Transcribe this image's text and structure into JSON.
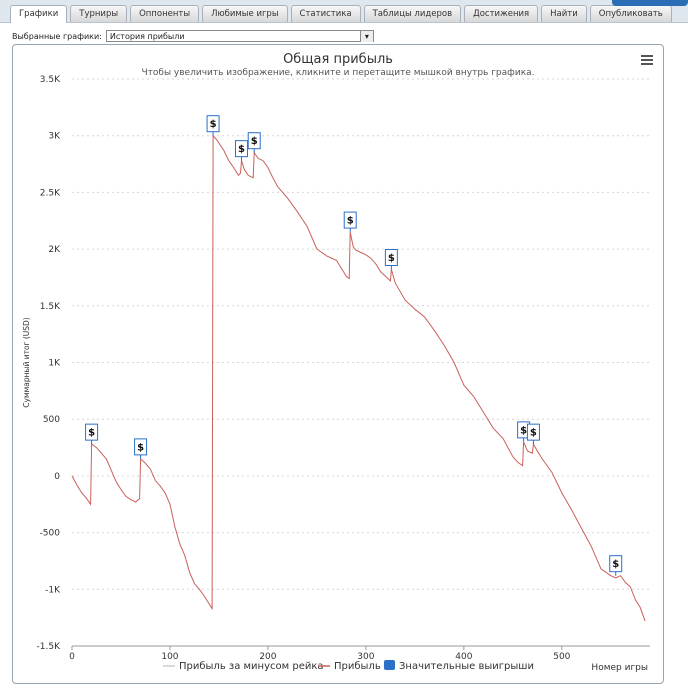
{
  "tabs": [
    {
      "label": "Графики",
      "active": true
    },
    {
      "label": "Турниры",
      "active": false
    },
    {
      "label": "Оппоненты",
      "active": false
    },
    {
      "label": "Любимые игры",
      "active": false
    },
    {
      "label": "Статистика",
      "active": false
    },
    {
      "label": "Таблицы лидеров",
      "active": false
    },
    {
      "label": "Достижения",
      "active": false
    },
    {
      "label": "Найти",
      "active": false
    },
    {
      "label": "Опубликовать",
      "active": false
    }
  ],
  "chooser": {
    "label": "Выбранные графики:",
    "value": "История прибыли",
    "arrow": "▾"
  },
  "chart_data": {
    "type": "line",
    "title": "Общая прибыль",
    "subtitle": "Чтобы увеличить изображение, кликните и перетащите мышкой внутрь графика.",
    "ylabel": "Суммарный итог (USD)",
    "xlabel": "Номер игры",
    "ylim": [
      -1500,
      3500
    ],
    "xlim": [
      0,
      590
    ],
    "y_ticks": [
      {
        "v": 3500,
        "label": "3.5K"
      },
      {
        "v": 3000,
        "label": "3K"
      },
      {
        "v": 2500,
        "label": "2.5K"
      },
      {
        "v": 2000,
        "label": "2K"
      },
      {
        "v": 1500,
        "label": "1.5K"
      },
      {
        "v": 1000,
        "label": "1K"
      },
      {
        "v": 500,
        "label": "500"
      },
      {
        "v": 0,
        "label": "0"
      },
      {
        "v": -500,
        "label": "-500"
      },
      {
        "v": -1000,
        "label": "-1K"
      },
      {
        "v": -1500,
        "label": "-1.5K"
      }
    ],
    "x_ticks": [
      {
        "v": 0,
        "label": "0"
      },
      {
        "v": 100,
        "label": "100"
      },
      {
        "v": 200,
        "label": "200"
      },
      {
        "v": 300,
        "label": "300"
      },
      {
        "v": 400,
        "label": "400"
      },
      {
        "v": 500,
        "label": "500"
      }
    ],
    "grid": true,
    "legend_position": "bottom",
    "series": [
      {
        "name": "Прибыль за минусом рейка",
        "color": "#cccccc",
        "hidden": true,
        "x": [],
        "y": []
      },
      {
        "name": "Прибыль",
        "color": "#c9605a",
        "x": [
          0,
          5,
          10,
          15,
          19,
          20,
          25,
          30,
          35,
          40,
          45,
          50,
          55,
          60,
          65,
          69,
          70,
          75,
          80,
          85,
          90,
          95,
          100,
          105,
          110,
          115,
          120,
          125,
          130,
          135,
          143,
          144,
          148,
          155,
          160,
          165,
          170,
          172,
          173,
          176,
          180,
          185,
          186,
          190,
          195,
          200,
          205,
          210,
          220,
          230,
          240,
          250,
          260,
          270,
          280,
          283,
          284,
          287,
          290,
          295,
          300,
          305,
          310,
          315,
          320,
          325,
          326,
          330,
          340,
          350,
          360,
          370,
          380,
          390,
          400,
          410,
          420,
          430,
          440,
          450,
          455,
          460,
          461,
          465,
          470,
          471,
          475,
          480,
          490,
          500,
          510,
          520,
          530,
          540,
          545,
          550,
          555,
          560,
          565,
          570,
          575,
          580,
          585
        ],
        "y": [
          0,
          -80,
          -150,
          -200,
          -250,
          280,
          250,
          200,
          150,
          50,
          -50,
          -120,
          -180,
          -210,
          -230,
          -200,
          150,
          110,
          60,
          -40,
          -90,
          -150,
          -250,
          -450,
          -600,
          -700,
          -850,
          -950,
          -1000,
          -1060,
          -1170,
          3000,
          2960,
          2870,
          2780,
          2720,
          2650,
          2670,
          2780,
          2700,
          2650,
          2630,
          2850,
          2800,
          2780,
          2720,
          2630,
          2550,
          2450,
          2330,
          2200,
          2000,
          1940,
          1900,
          1760,
          1740,
          2150,
          2020,
          1990,
          1970,
          1950,
          1920,
          1870,
          1800,
          1760,
          1720,
          1820,
          1700,
          1550,
          1470,
          1400,
          1280,
          1150,
          1000,
          800,
          700,
          560,
          420,
          330,
          170,
          120,
          90,
          300,
          220,
          200,
          280,
          220,
          150,
          30,
          -150,
          -300,
          -460,
          -620,
          -820,
          -850,
          -880,
          -900,
          -880,
          -940,
          -980,
          -1090,
          -1160,
          -1280
        ]
      },
      {
        "name": "Значительные выигрыши",
        "color": "#2b6fc7"
      }
    ],
    "flags": [
      {
        "x": 20,
        "y": 280,
        "text": "$"
      },
      {
        "x": 70,
        "y": 150,
        "text": "$"
      },
      {
        "x": 144,
        "y": 3000,
        "text": "$"
      },
      {
        "x": 173,
        "y": 2780,
        "text": "$"
      },
      {
        "x": 186,
        "y": 2850,
        "text": "$"
      },
      {
        "x": 284,
        "y": 2150,
        "text": "$"
      },
      {
        "x": 326,
        "y": 1820,
        "text": "$"
      },
      {
        "x": 461,
        "y": 300,
        "text": "$"
      },
      {
        "x": 471,
        "y": 280,
        "text": "$"
      },
      {
        "x": 555,
        "y": -880,
        "text": "$"
      }
    ]
  }
}
